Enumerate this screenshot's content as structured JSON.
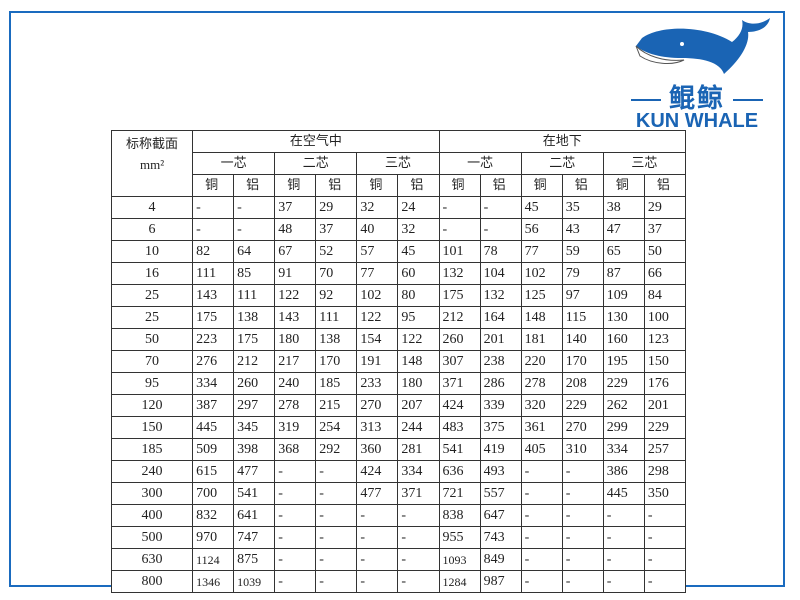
{
  "logo": {
    "cn": "鲲鲸",
    "en": "KUN WHALE",
    "color": "#1a64b4"
  },
  "table": {
    "header_size": "标称截面",
    "header_unit": "mm²",
    "groups": [
      "在空气中",
      "在地下"
    ],
    "cores": [
      "一芯",
      "二芯",
      "三芯",
      "一芯",
      "二芯",
      "三芯"
    ],
    "metals": [
      "铜",
      "铝"
    ],
    "rows": [
      [
        "4",
        "-",
        "-",
        "37",
        "29",
        "32",
        "24",
        "-",
        "-",
        "45",
        "35",
        "38",
        "29"
      ],
      [
        "6",
        "-",
        "-",
        "48",
        "37",
        "40",
        "32",
        "-",
        "-",
        "56",
        "43",
        "47",
        "37"
      ],
      [
        "10",
        "82",
        "64",
        "67",
        "52",
        "57",
        "45",
        "101",
        "78",
        "77",
        "59",
        "65",
        "50"
      ],
      [
        "16",
        "111",
        "85",
        "91",
        "70",
        "77",
        "60",
        "132",
        "104",
        "102",
        "79",
        "87",
        "66"
      ],
      [
        "25",
        "143",
        "111",
        "122",
        "92",
        "102",
        "80",
        "175",
        "132",
        "125",
        "97",
        "109",
        "84"
      ],
      [
        "25",
        "175",
        "138",
        "143",
        "111",
        "122",
        "95",
        "212",
        "164",
        "148",
        "115",
        "130",
        "100"
      ],
      [
        "50",
        "223",
        "175",
        "180",
        "138",
        "154",
        "122",
        "260",
        "201",
        "181",
        "140",
        "160",
        "123"
      ],
      [
        "70",
        "276",
        "212",
        "217",
        "170",
        "191",
        "148",
        "307",
        "238",
        "220",
        "170",
        "195",
        "150"
      ],
      [
        "95",
        "334",
        "260",
        "240",
        "185",
        "233",
        "180",
        "371",
        "286",
        "278",
        "208",
        "229",
        "176"
      ],
      [
        "120",
        "387",
        "297",
        "278",
        "215",
        "270",
        "207",
        "424",
        "339",
        "320",
        "229",
        "262",
        "201"
      ],
      [
        "150",
        "445",
        "345",
        "319",
        "254",
        "313",
        "244",
        "483",
        "375",
        "361",
        "270",
        "299",
        "229"
      ],
      [
        "185",
        "509",
        "398",
        "368",
        "292",
        "360",
        "281",
        "541",
        "419",
        "405",
        "310",
        "334",
        "257"
      ],
      [
        "240",
        "615",
        "477",
        "-",
        "-",
        "424",
        "334",
        "636",
        "493",
        "-",
        "-",
        "386",
        "298"
      ],
      [
        "300",
        "700",
        "541",
        "-",
        "-",
        "477",
        "371",
        "721",
        "557",
        "-",
        "-",
        "445",
        "350"
      ],
      [
        "400",
        "832",
        "641",
        "-",
        "-",
        "-",
        "-",
        "838",
        "647",
        "-",
        "-",
        "-",
        "-"
      ],
      [
        "500",
        "970",
        "747",
        "-",
        "-",
        "-",
        "-",
        "955",
        "743",
        "-",
        "-",
        "-",
        "-"
      ],
      [
        "630",
        "1124",
        "875",
        "-",
        "-",
        "-",
        "-",
        "1093",
        "849",
        "-",
        "-",
        "-",
        "-"
      ],
      [
        "800",
        "1346",
        "1039",
        "-",
        "-",
        "-",
        "-",
        "1284",
        "987",
        "-",
        "-",
        "-",
        "-"
      ]
    ]
  }
}
